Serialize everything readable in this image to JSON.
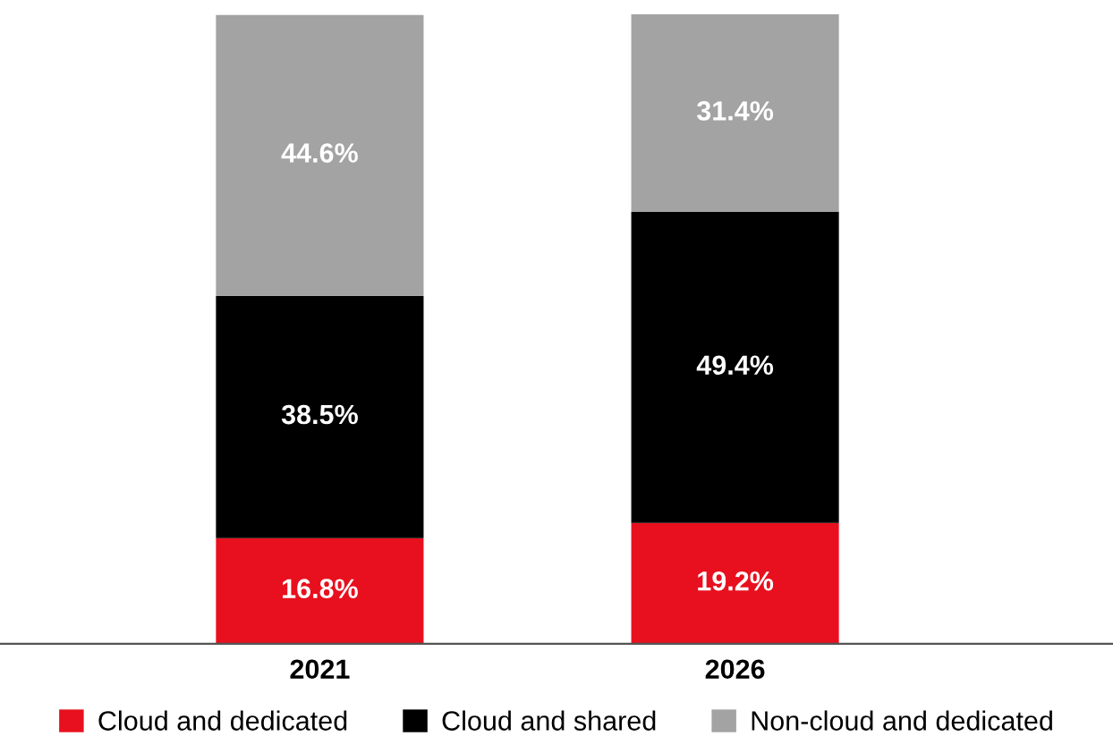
{
  "chart_data": {
    "type": "bar",
    "stacked": true,
    "categories": [
      "2021",
      "2026"
    ],
    "series": [
      {
        "name": "Cloud and dedicated",
        "color": "#e8101e",
        "values": [
          16.8,
          19.2
        ],
        "value_labels": [
          "16.8%",
          "19.2%"
        ]
      },
      {
        "name": "Cloud and shared",
        "color": "#000000",
        "values": [
          38.5,
          49.4
        ],
        "value_labels": [
          "38.5%",
          "49.4%"
        ]
      },
      {
        "name": "Non-cloud and dedicated",
        "color": "#a3a3a3",
        "values": [
          44.6,
          31.4
        ],
        "value_labels": [
          "44.6%",
          "31.4%"
        ]
      }
    ],
    "legend": "bottom",
    "grid": false
  }
}
